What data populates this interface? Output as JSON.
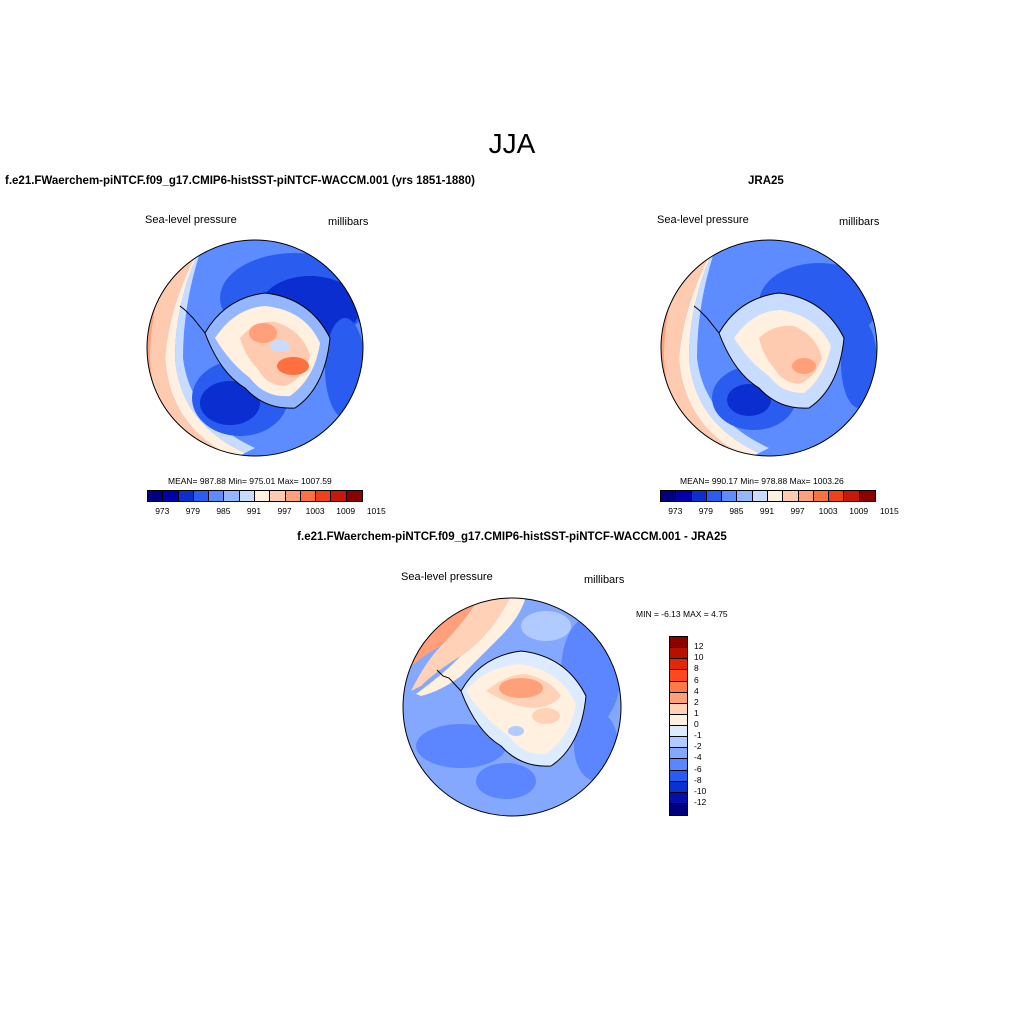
{
  "figure_title": "JJA",
  "panels": [
    {
      "case_title": "f.e21.FWaerchem-piNTCF.f09_g17.CMIP6-histSST-piNTCF-WACCM.001 (yrs 1851-1880)",
      "variable": "Sea-level pressure",
      "units": "millibars",
      "stats": "MEAN= 987.88  Min= 975.01  Max= 1007.59"
    },
    {
      "case_title": "JRA25",
      "variable": "Sea-level pressure",
      "units": "millibars",
      "stats": "MEAN= 990.17  Min= 978.88  Max= 1003.26"
    },
    {
      "case_title": "f.e21.FWaerchem-piNTCF.f09_g17.CMIP6-histSST-piNTCF-WACCM.001 - JRA25",
      "variable": "Sea-level pressure",
      "units": "millibars",
      "stats": "MIN =  -6.13 MAX =   4.75"
    }
  ],
  "abs_colorbar": {
    "colors": [
      "#00007f",
      "#0000a8",
      "#0a2ed0",
      "#2a5cf0",
      "#5c8cff",
      "#94b6ff",
      "#c8dcff",
      "#fff0e0",
      "#ffcbb0",
      "#ffa07a",
      "#ff7040",
      "#f04018",
      "#c81808",
      "#8c0000"
    ],
    "tick_labels": [
      "973",
      "979",
      "985",
      "991",
      "997",
      "1003",
      "1009",
      "1015"
    ]
  },
  "diff_colorbar": {
    "colors": [
      "#8c0000",
      "#b81000",
      "#e02808",
      "#ff4820",
      "#ff7a48",
      "#ffa07a",
      "#ffd2b8",
      "#fff0e0",
      "#dcebff",
      "#b0cbff",
      "#85a8ff",
      "#5c86ff",
      "#2a5af0",
      "#0a32d0",
      "#0010a8",
      "#00007f"
    ],
    "tick_labels": [
      "12",
      "10",
      "8",
      "6",
      "4",
      "2",
      "1",
      "0",
      "-1",
      "-2",
      "-4",
      "-6",
      "-8",
      "-10",
      "-12"
    ]
  },
  "map_colors": {
    "deep_blue": "#0a2ed0",
    "mid_blue": "#2a5cf0",
    "light_blue": "#5c8cff",
    "pale_blue": "#94b6ff",
    "very_pale_blue": "#c8dcff",
    "pale_orange": "#fff0e0",
    "peach": "#ffcbb0",
    "salmon": "#ffa07a",
    "orange": "#ff7040",
    "coastline": "#000000"
  }
}
